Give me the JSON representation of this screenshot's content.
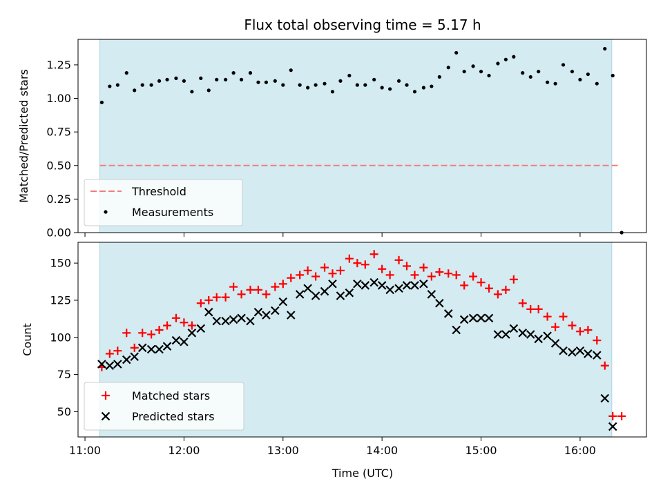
{
  "chart_data": [
    {
      "type": "scatter",
      "panel": "top",
      "title": "Flux total observing time = 5.17 h",
      "ylabel": "Matched/Predicted stars",
      "ylim": [
        0,
        1.44
      ],
      "yticks": [
        0,
        0.25,
        0.5,
        0.75,
        1.0,
        1.25
      ],
      "ytick_labels": [
        "0.00",
        "0.25",
        "0.50",
        "0.75",
        "1.00",
        "1.25"
      ],
      "xlim_hours": [
        10.93,
        16.67
      ],
      "grid": false,
      "legend_position": "lower-left",
      "shaded_interval_hours": [
        11.15,
        16.32
      ],
      "shade_color": "#d3ebf1",
      "threshold": {
        "name": "Threshold",
        "value": 0.5,
        "x_range": [
          11.15,
          16.4
        ],
        "color": "#f47c7c"
      },
      "series": [
        {
          "name": "Measurements",
          "color": "#000000",
          "marker": "dot",
          "x": [
            11.17,
            11.25,
            11.33,
            11.42,
            11.5,
            11.58,
            11.67,
            11.75,
            11.83,
            11.92,
            12.0,
            12.08,
            12.17,
            12.25,
            12.33,
            12.42,
            12.5,
            12.58,
            12.67,
            12.75,
            12.83,
            12.92,
            13.0,
            13.08,
            13.17,
            13.25,
            13.33,
            13.42,
            13.5,
            13.58,
            13.67,
            13.75,
            13.83,
            13.92,
            14.0,
            14.08,
            14.17,
            14.25,
            14.33,
            14.42,
            14.5,
            14.58,
            14.67,
            14.75,
            14.83,
            14.92,
            15.0,
            15.08,
            15.17,
            15.25,
            15.33,
            15.42,
            15.5,
            15.58,
            15.67,
            15.75,
            15.83,
            15.92,
            16.0,
            16.08,
            16.17,
            16.25,
            16.33,
            16.42
          ],
          "y": [
            0.97,
            1.09,
            1.1,
            1.19,
            1.06,
            1.1,
            1.1,
            1.13,
            1.14,
            1.15,
            1.13,
            1.05,
            1.15,
            1.06,
            1.14,
            1.14,
            1.19,
            1.14,
            1.19,
            1.12,
            1.12,
            1.13,
            1.1,
            1.21,
            1.1,
            1.08,
            1.1,
            1.11,
            1.05,
            1.13,
            1.17,
            1.1,
            1.1,
            1.14,
            1.08,
            1.07,
            1.13,
            1.1,
            1.05,
            1.08,
            1.09,
            1.16,
            1.23,
            1.34,
            1.2,
            1.24,
            1.2,
            1.17,
            1.26,
            1.29,
            1.31,
            1.19,
            1.16,
            1.2,
            1.12,
            1.11,
            1.25,
            1.2,
            1.14,
            1.18,
            1.11,
            1.37,
            1.17,
            0.0
          ]
        }
      ]
    },
    {
      "type": "scatter",
      "panel": "bottom",
      "xlabel": "Time (UTC)",
      "ylabel": "Count",
      "ylim": [
        33,
        164
      ],
      "yticks": [
        50,
        75,
        100,
        125,
        150
      ],
      "ytick_labels": [
        "50",
        "75",
        "100",
        "125",
        "150"
      ],
      "xlim_hours": [
        10.93,
        16.67
      ],
      "xticks_hours": [
        11,
        12,
        13,
        14,
        15,
        16
      ],
      "xtick_labels": [
        "11:00",
        "12:00",
        "13:00",
        "14:00",
        "15:00",
        "16:00"
      ],
      "grid": false,
      "legend_position": "lower-left",
      "shaded_interval_hours": [
        11.15,
        16.32
      ],
      "shade_color": "#d3ebf1",
      "x": [
        11.17,
        11.25,
        11.33,
        11.42,
        11.5,
        11.58,
        11.67,
        11.75,
        11.83,
        11.92,
        12.0,
        12.08,
        12.17,
        12.25,
        12.33,
        12.42,
        12.5,
        12.58,
        12.67,
        12.75,
        12.83,
        12.92,
        13.0,
        13.08,
        13.17,
        13.25,
        13.33,
        13.42,
        13.5,
        13.58,
        13.67,
        13.75,
        13.83,
        13.92,
        14.0,
        14.08,
        14.17,
        14.25,
        14.33,
        14.42,
        14.5,
        14.58,
        14.67,
        14.75,
        14.83,
        14.92,
        15.0,
        15.08,
        15.17,
        15.25,
        15.33,
        15.42,
        15.5,
        15.58,
        15.67,
        15.75,
        15.83,
        15.92,
        16.0,
        16.08,
        16.17,
        16.25,
        16.33,
        16.42
      ],
      "series": [
        {
          "name": "Matched stars",
          "color": "#ff0000",
          "marker": "plus",
          "values": [
            80,
            89,
            91,
            103,
            93,
            103,
            102,
            105,
            108,
            113,
            110,
            108,
            123,
            125,
            127,
            127,
            134,
            129,
            132,
            132,
            129,
            134,
            136,
            140,
            142,
            145,
            141,
            147,
            143,
            145,
            153,
            150,
            149,
            156,
            146,
            142,
            152,
            148,
            142,
            147,
            141,
            144,
            143,
            142,
            135,
            141,
            137,
            133,
            129,
            132,
            139,
            123,
            119,
            119,
            114,
            107,
            114,
            108,
            104,
            105,
            98,
            81,
            47,
            47
          ]
        },
        {
          "name": "Predicted stars",
          "color": "#000000",
          "marker": "x",
          "values": [
            82,
            81,
            82,
            85,
            87,
            93,
            92,
            92,
            94,
            98,
            97,
            103,
            106,
            117,
            111,
            111,
            112,
            113,
            111,
            117,
            115,
            118,
            124,
            115,
            129,
            133,
            128,
            131,
            136,
            128,
            130,
            136,
            135,
            137,
            135,
            132,
            133,
            135,
            135,
            136,
            129,
            123,
            116,
            105,
            112,
            113,
            113,
            113,
            102,
            102,
            106,
            103,
            102,
            99,
            101,
            96,
            91,
            90,
            91,
            89,
            88,
            59,
            40,
            null
          ]
        }
      ]
    }
  ]
}
